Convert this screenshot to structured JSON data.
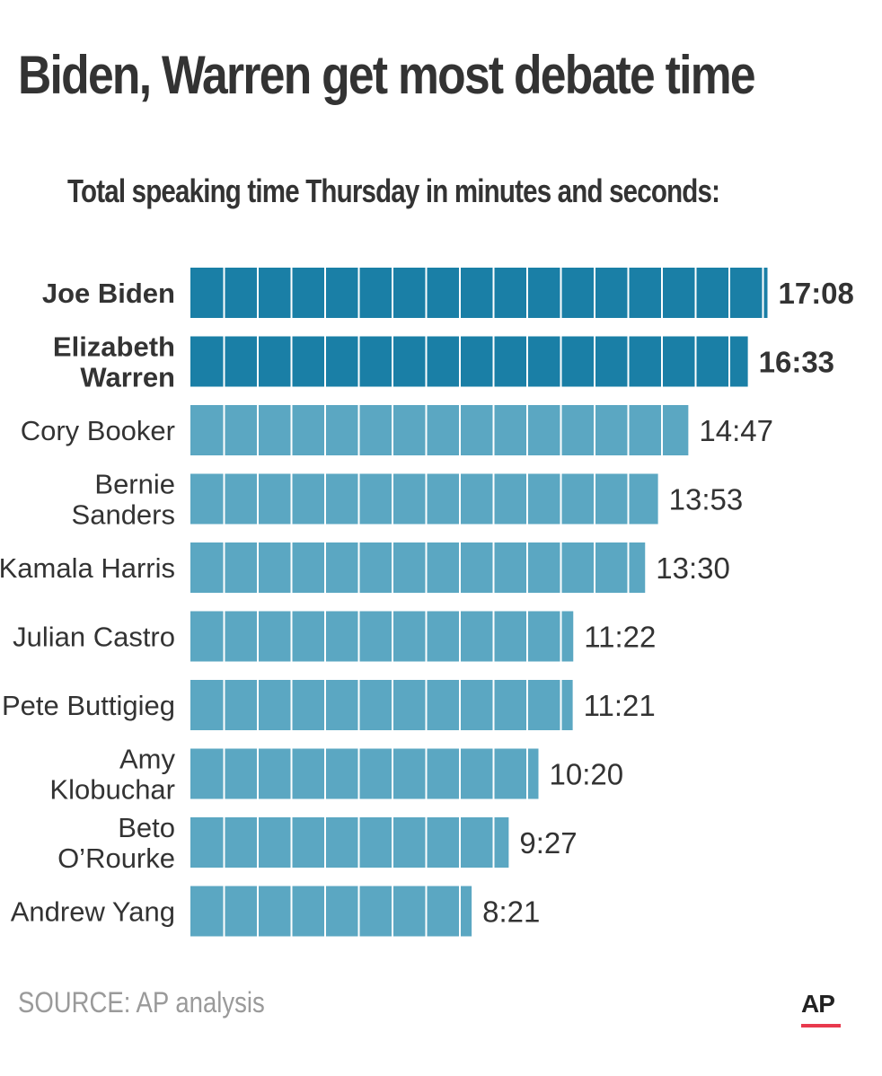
{
  "title": "Biden, Warren get most debate time",
  "subtitle": "Total speaking time Thursday in minutes and seconds:",
  "source": "SOURCE: AP analysis",
  "logo_text": "AP",
  "colors": {
    "highlight_bar": "#1a7fa6",
    "bar": "#5ba7c2",
    "text": "#333333",
    "source_text": "#9a9a9a",
    "logo_accent": "#e8394d"
  },
  "chart_data": {
    "type": "bar",
    "orientation": "horizontal",
    "unit": "minutes",
    "highlighted": [
      0,
      1
    ],
    "xlim": [
      0,
      17.14
    ],
    "grid": false,
    "categories": [
      [
        "Joe Biden"
      ],
      [
        "Elizabeth",
        "Warren"
      ],
      [
        "Cory Booker"
      ],
      [
        "Bernie",
        "Sanders"
      ],
      [
        "Kamala Harris"
      ],
      [
        "Julian Castro"
      ],
      [
        "Pete Buttigieg"
      ],
      [
        "Amy",
        "Klobuchar"
      ],
      [
        "Beto",
        "O’Rourke"
      ],
      [
        "Andrew Yang"
      ]
    ],
    "value_labels": [
      "17:08",
      "16:33",
      "14:47",
      "13:53",
      "13:30",
      "11:22",
      "11:21",
      "10:20",
      "9:27",
      "8:21"
    ],
    "values": [
      17.133,
      16.55,
      14.783,
      13.883,
      13.5,
      11.367,
      11.35,
      10.333,
      9.45,
      8.35
    ]
  }
}
